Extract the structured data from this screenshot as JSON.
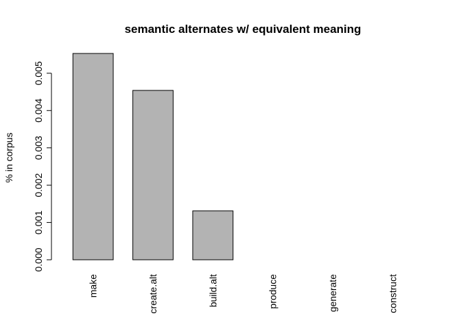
{
  "chart_data": {
    "type": "bar",
    "title": "semantic alternates w/ equivalent meaning",
    "xlabel": "",
    "ylabel": "% in corpus",
    "categories": [
      "make",
      "create.alt",
      "build.alt",
      "produce",
      "generate",
      "construct"
    ],
    "values": [
      0.00553,
      0.00454,
      0.00131,
      0.0,
      0.0,
      0.0
    ],
    "ylim": [
      0,
      0.00553
    ],
    "yticks": [
      0.0,
      0.001,
      0.002,
      0.003,
      0.004,
      0.005
    ],
    "ytick_labels": [
      "0.000",
      "0.001",
      "0.002",
      "0.003",
      "0.004",
      "0.005"
    ],
    "bar_color": "#b3b3b3",
    "bar_edge_color": "#000000",
    "grid": false,
    "legend": "none"
  }
}
